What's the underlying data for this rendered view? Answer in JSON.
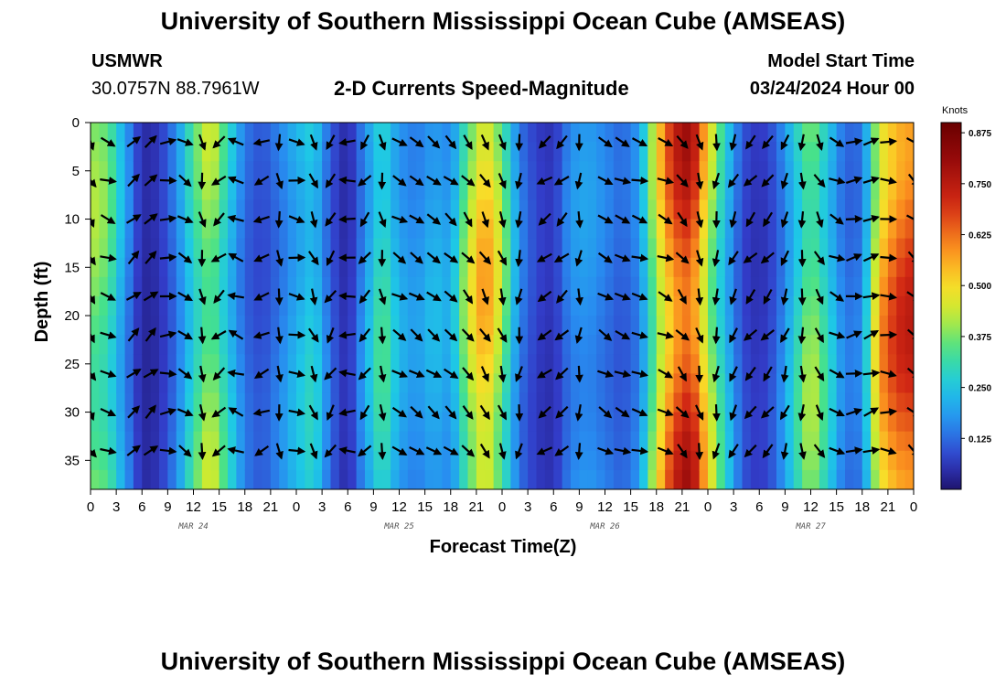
{
  "page": {
    "title_top": "University of Southern Mississippi Ocean Cube (AMSEAS)",
    "title_bottom": "University of Southern Mississippi Ocean Cube (AMSEAS)",
    "station_id": "USMWR",
    "station_coords": "30.0757N  88.7961W",
    "model_start_label": "Model Start Time",
    "model_start_value": "03/24/2024 Hour 00"
  },
  "chart_data": {
    "type": "heatmap",
    "title": "2-D Currents Speed-Magnitude",
    "xlabel": "Forecast Time(Z)",
    "ylabel": "Depth (ft)",
    "x_tick_labels": [
      "0",
      "3",
      "6",
      "9",
      "12",
      "15",
      "18",
      "21",
      "0",
      "3",
      "6",
      "9",
      "12",
      "15",
      "18",
      "21",
      "0",
      "3",
      "6",
      "9",
      "12",
      "15",
      "18",
      "21",
      "0",
      "3",
      "6",
      "9",
      "12",
      "15",
      "18",
      "21",
      "0"
    ],
    "x_range_hours": [
      0,
      96
    ],
    "date_labels": [
      {
        "text": "MAR 24",
        "hour": 12
      },
      {
        "text": "MAR 25",
        "hour": 36
      },
      {
        "text": "MAR 26",
        "hour": 60
      },
      {
        "text": "MAR 27",
        "hour": 84
      }
    ],
    "y_ticks": [
      0,
      5,
      10,
      15,
      20,
      25,
      30,
      35
    ],
    "y_tick_labels": [
      "0",
      "5",
      "10",
      "15",
      "20",
      "25",
      "30",
      "35"
    ],
    "ylim": [
      0,
      38
    ],
    "y_inverted": true,
    "colorbar": {
      "unit": "Knots",
      "range": [
        0,
        0.9
      ],
      "ticks": [
        0.125,
        0.25,
        0.375,
        0.5,
        0.625,
        0.75,
        0.875
      ],
      "tick_labels": [
        "0.125",
        "0.250",
        "0.375",
        "0.500",
        "0.625",
        "0.750",
        "0.875"
      ]
    },
    "speed_profile_knots": [
      {
        "hour": 0,
        "speed": 0.42
      },
      {
        "hour": 2,
        "speed": 0.38
      },
      {
        "hour": 4,
        "speed": 0.2
      },
      {
        "hour": 6,
        "speed": 0.04
      },
      {
        "hour": 8,
        "speed": 0.06
      },
      {
        "hour": 10,
        "speed": 0.16
      },
      {
        "hour": 12,
        "speed": 0.34
      },
      {
        "hour": 14,
        "speed": 0.46
      },
      {
        "hour": 16,
        "speed": 0.3
      },
      {
        "hour": 18,
        "speed": 0.14
      },
      {
        "hour": 20,
        "speed": 0.1
      },
      {
        "hour": 22,
        "speed": 0.16
      },
      {
        "hour": 24,
        "speed": 0.24
      },
      {
        "hour": 26,
        "speed": 0.3
      },
      {
        "hour": 28,
        "speed": 0.12
      },
      {
        "hour": 30,
        "speed": 0.04
      },
      {
        "hour": 32,
        "speed": 0.2
      },
      {
        "hour": 34,
        "speed": 0.36
      },
      {
        "hour": 36,
        "speed": 0.22
      },
      {
        "hour": 38,
        "speed": 0.18
      },
      {
        "hour": 40,
        "speed": 0.24
      },
      {
        "hour": 42,
        "speed": 0.2
      },
      {
        "hour": 44,
        "speed": 0.44
      },
      {
        "hour": 46,
        "speed": 0.6
      },
      {
        "hour": 48,
        "speed": 0.42
      },
      {
        "hour": 50,
        "speed": 0.16
      },
      {
        "hour": 52,
        "speed": 0.08
      },
      {
        "hour": 54,
        "speed": 0.06
      },
      {
        "hour": 56,
        "speed": 0.18
      },
      {
        "hour": 58,
        "speed": 0.2
      },
      {
        "hour": 60,
        "speed": 0.16
      },
      {
        "hour": 62,
        "speed": 0.12
      },
      {
        "hour": 64,
        "speed": 0.18
      },
      {
        "hour": 66,
        "speed": 0.48
      },
      {
        "hour": 68,
        "speed": 0.72
      },
      {
        "hour": 70,
        "speed": 0.8
      },
      {
        "hour": 72,
        "speed": 0.5
      },
      {
        "hour": 74,
        "speed": 0.28
      },
      {
        "hour": 76,
        "speed": 0.1
      },
      {
        "hour": 78,
        "speed": 0.06
      },
      {
        "hour": 80,
        "speed": 0.12
      },
      {
        "hour": 82,
        "speed": 0.28
      },
      {
        "hour": 84,
        "speed": 0.44
      },
      {
        "hour": 86,
        "speed": 0.3
      },
      {
        "hour": 88,
        "speed": 0.14
      },
      {
        "hour": 90,
        "speed": 0.16
      },
      {
        "hour": 92,
        "speed": 0.58
      },
      {
        "hour": 94,
        "speed": 0.7
      },
      {
        "hour": 96,
        "speed": 0.74
      }
    ],
    "vector_hours": [
      0,
      2,
      5,
      7,
      9,
      11,
      13,
      15,
      17,
      20,
      22,
      24,
      26,
      28,
      30,
      32,
      34,
      36,
      38,
      40,
      42,
      44,
      46,
      48,
      50,
      53,
      55,
      57,
      60,
      62,
      64,
      67,
      69,
      71,
      73,
      75,
      77,
      79,
      81,
      83,
      85,
      87,
      89,
      91,
      93,
      96
    ],
    "vector_depths_ft": [
      2,
      6,
      10,
      14,
      18,
      22,
      26,
      30,
      34
    ],
    "vector_direction_profile_deg": [
      {
        "hour": 0,
        "dir": 150
      },
      {
        "hour": 6,
        "dir": 30
      },
      {
        "hour": 12,
        "dir": 140
      },
      {
        "hour": 18,
        "dir": 320
      },
      {
        "hour": 24,
        "dir": 100
      },
      {
        "hour": 30,
        "dir": 270
      },
      {
        "hour": 36,
        "dir": 120
      },
      {
        "hour": 42,
        "dir": 130
      },
      {
        "hour": 48,
        "dir": 160
      },
      {
        "hour": 54,
        "dir": 250
      },
      {
        "hour": 60,
        "dir": 120
      },
      {
        "hour": 66,
        "dir": 100
      },
      {
        "hour": 72,
        "dir": 180
      },
      {
        "hour": 78,
        "dir": 230
      },
      {
        "hour": 84,
        "dir": 170
      },
      {
        "hour": 90,
        "dir": 60
      },
      {
        "hour": 96,
        "dir": 130
      }
    ]
  }
}
